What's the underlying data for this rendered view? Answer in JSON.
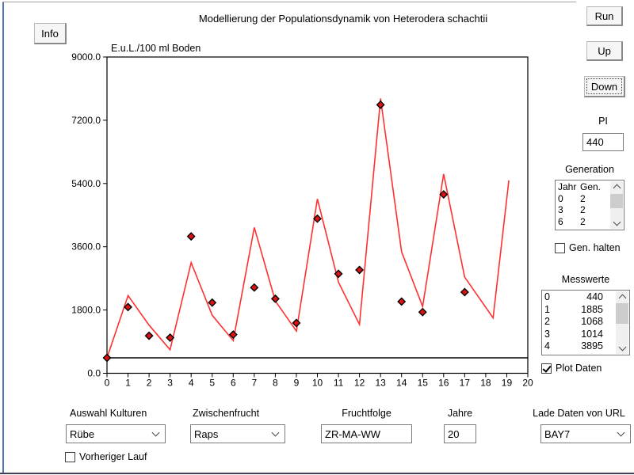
{
  "window": {
    "title": "Modellierung der Populationsdynamik von Heterodera schachtii"
  },
  "toolbar": {
    "info": "Info",
    "run": "Run",
    "up": "Up",
    "down": "Down"
  },
  "pi": {
    "label": "PI",
    "value": "440"
  },
  "generation": {
    "label": "Generation",
    "rows": [
      [
        "Jahr",
        "Gen."
      ],
      [
        "0",
        "2"
      ],
      [
        "3",
        "2"
      ],
      [
        "6",
        "2"
      ]
    ],
    "halten_label": "Gen. halten",
    "halten_checked": false
  },
  "messwerte": {
    "label": "Messwerte",
    "rows": [
      [
        "0",
        "440"
      ],
      [
        "1",
        "1885"
      ],
      [
        "2",
        "1068"
      ],
      [
        "3",
        "1014"
      ],
      [
        "4",
        "3895"
      ]
    ],
    "plot_label": "Plot Daten",
    "plot_checked": true
  },
  "controls": {
    "kulturen": {
      "label": "Auswahl Kulturen",
      "value": "Rübe"
    },
    "zwischenfrucht": {
      "label": "Zwischenfrucht",
      "value": "Raps"
    },
    "fruchtfolge": {
      "label": "Fruchtfolge",
      "value": "ZR-MA-WW"
    },
    "jahre": {
      "label": "Jahre",
      "value": "20"
    },
    "url": {
      "label": "Lade Daten von URL",
      "value": "BAY7"
    },
    "vorheriger": {
      "label": "Vorheriger Lauf",
      "checked": false
    }
  },
  "chart_data": {
    "type": "line",
    "title": "Modellierung der Populationsdynamik von Heterodera schachtii",
    "ylabel": "E.u.L./100 ml Boden",
    "xlabel": "",
    "xlim": [
      0,
      20
    ],
    "ylim": [
      0,
      9000
    ],
    "x_ticks": [
      0,
      1,
      2,
      3,
      4,
      5,
      6,
      7,
      8,
      9,
      10,
      11,
      12,
      13,
      14,
      15,
      16,
      17,
      18,
      19,
      20
    ],
    "y_ticks": [
      0,
      1800,
      3600,
      5400,
      7200,
      9000
    ],
    "y_tick_labels": [
      "0.0",
      "1800.0",
      "3600.0",
      "5400.0",
      "7200.0",
      "9000.0"
    ],
    "baseline": 440,
    "grid": false,
    "legend": "none",
    "series": [
      {
        "name": "Simulation",
        "type": "line",
        "color": "#ff3030",
        "points": [
          [
            0,
            440
          ],
          [
            1,
            2210
          ],
          [
            2,
            1370
          ],
          [
            3,
            670
          ],
          [
            4,
            3150
          ],
          [
            5,
            1650
          ],
          [
            6,
            930
          ],
          [
            7,
            4150
          ],
          [
            8,
            2060
          ],
          [
            9,
            1200
          ],
          [
            10,
            4960
          ],
          [
            11,
            2590
          ],
          [
            12,
            1390
          ],
          [
            13,
            7820
          ],
          [
            14,
            3460
          ],
          [
            15,
            1900
          ],
          [
            16,
            5670
          ],
          [
            17,
            2740
          ],
          [
            18.35,
            1575
          ],
          [
            19.1,
            5490
          ]
        ]
      },
      {
        "name": "Messwerte",
        "type": "scatter",
        "color": "#dd1111",
        "x": [
          0,
          1,
          2,
          3,
          4,
          5,
          6,
          7,
          8,
          9,
          10,
          11,
          12,
          13,
          14,
          15,
          16,
          17
        ],
        "y": [
          440,
          1885,
          1068,
          1014,
          3895,
          2010,
          1100,
          2440,
          2120,
          1430,
          4400,
          2830,
          2940,
          7640,
          2040,
          1740,
          5090,
          2310
        ]
      }
    ]
  }
}
